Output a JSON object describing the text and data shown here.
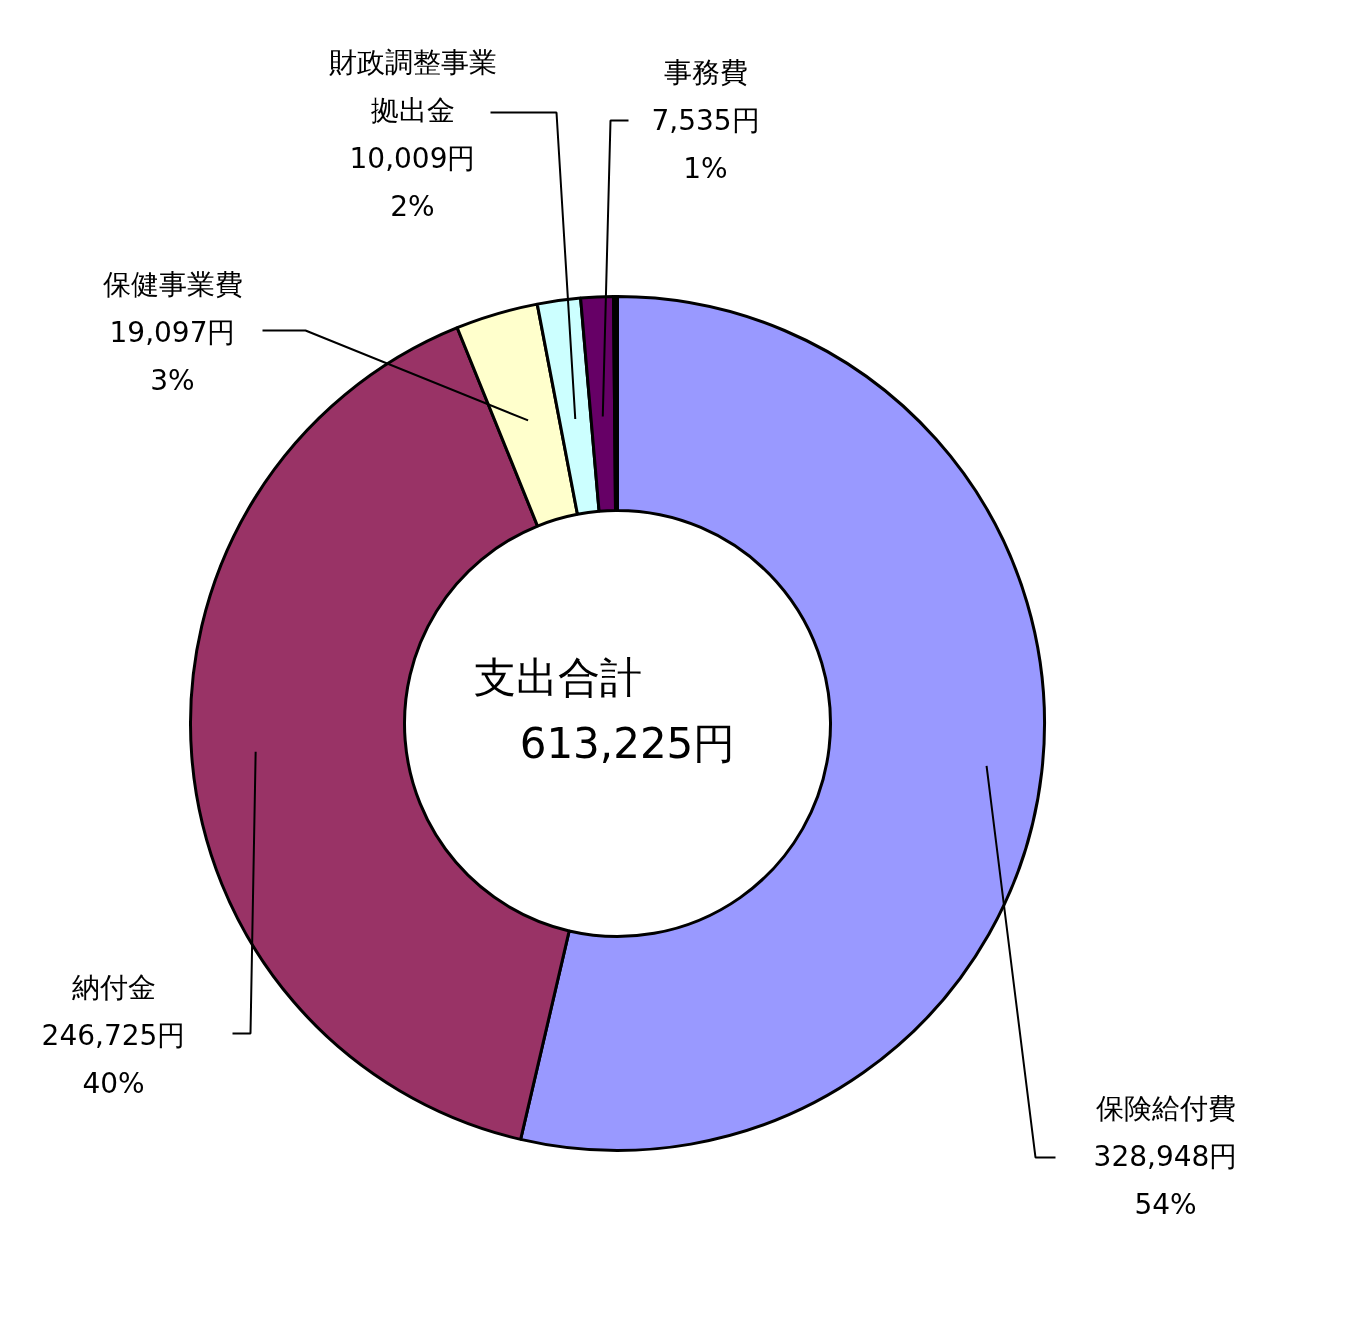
{
  "chart_data": {
    "type": "donut",
    "categories": [
      "保険給付費",
      "納付金",
      "保健事業費",
      "財政調整事業拠出金",
      "事務費",
      null
    ],
    "values": [
      328948,
      246725,
      19097,
      10009,
      7535,
      911
    ],
    "colors": [
      "#9999ff",
      "#993366",
      "#ffffcc",
      "#ccffff",
      "#660066",
      "#000000"
    ],
    "value_labels": [
      "328,948円\n54%",
      "246,725円\n40%",
      "19,097円\n3%",
      "10,009円\n2%",
      "7,535円\n1%",
      null
    ],
    "annotations": [
      "支出合計",
      "613,225円"
    ]
  }
}
